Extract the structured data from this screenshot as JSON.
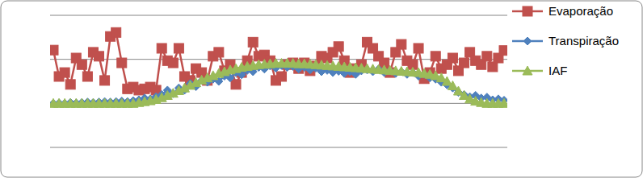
{
  "chart_data": {
    "type": "line",
    "x": [
      1,
      2,
      3,
      4,
      5,
      6,
      7,
      8,
      9,
      10,
      11,
      12,
      13,
      14,
      15,
      16,
      17,
      18,
      19,
      20,
      21,
      22,
      23,
      24,
      25,
      26,
      27,
      28,
      29,
      30,
      31,
      32,
      33,
      34,
      35,
      36,
      37,
      38,
      39,
      40,
      41,
      42,
      43,
      44,
      45,
      46,
      47,
      48,
      49,
      50,
      51,
      52,
      53,
      54,
      55,
      56,
      57,
      58,
      59,
      60,
      61,
      62,
      63,
      64,
      65,
      66,
      67,
      68,
      69,
      70,
      71,
      72,
      73,
      74,
      75,
      76,
      77,
      78,
      79,
      80
    ],
    "xlim": [
      1,
      80
    ],
    "ylim": [
      0,
      3
    ],
    "yticks": [
      0,
      1,
      2,
      3
    ],
    "grid": true,
    "tick_labels": false,
    "legend": "right",
    "series": [
      {
        "name": "Evaporação",
        "color": "#c0504d",
        "marker": "square",
        "values": [
          2.21,
          1.61,
          1.7,
          1.43,
          2.03,
          1.88,
          1.61,
          2.16,
          2.07,
          1.52,
          2.52,
          2.61,
          1.92,
          1.33,
          1.37,
          1.3,
          1.33,
          1.37,
          1.3,
          2.25,
          1.97,
          1.92,
          2.25,
          1.61,
          1.52,
          1.79,
          1.7,
          1.52,
          2.07,
          2.16,
          1.74,
          1.88,
          1.43,
          1.7,
          1.97,
          2.39,
          2.07,
          2.1,
          1.97,
          1.52,
          1.61,
          1.88,
          1.92,
          1.79,
          1.92,
          1.74,
          1.85,
          2.07,
          2.03,
          2.16,
          2.29,
          1.97,
          1.7,
          1.79,
          1.88,
          2.39,
          2.25,
          2.07,
          1.92,
          1.7,
          2.16,
          2.34,
          1.97,
          1.88,
          2.25,
          1.56,
          1.7,
          2.07,
          1.79,
          1.88,
          2.03,
          1.74,
          1.92,
          2.16,
          1.97,
          1.88,
          2.07,
          1.83,
          2.03,
          2.2
        ]
      },
      {
        "name": "Transpiração",
        "color": "#4f81bd",
        "marker": "diamond",
        "values": [
          1.0,
          1.01,
          1.0,
          1.02,
          1.01,
          1.02,
          1.03,
          1.02,
          1.03,
          1.04,
          1.03,
          1.04,
          1.05,
          1.04,
          1.06,
          1.08,
          1.12,
          1.1,
          1.15,
          1.2,
          1.3,
          1.22,
          1.35,
          1.3,
          1.45,
          1.38,
          1.52,
          1.48,
          1.55,
          1.5,
          1.62,
          1.58,
          1.7,
          1.65,
          1.75,
          1.72,
          1.82,
          1.78,
          1.85,
          1.8,
          1.86,
          1.82,
          1.84,
          1.78,
          1.82,
          1.76,
          1.8,
          1.72,
          1.75,
          1.7,
          1.73,
          1.68,
          1.72,
          1.66,
          1.74,
          1.76,
          1.72,
          1.78,
          1.7,
          1.74,
          1.68,
          1.72,
          1.66,
          1.7,
          1.62,
          1.66,
          1.58,
          1.55,
          1.48,
          1.42,
          1.35,
          1.25,
          1.2,
          1.15,
          1.18,
          1.12,
          1.14,
          1.08,
          1.1,
          1.07
        ]
      },
      {
        "name": "IAF",
        "color": "#9bbb59",
        "marker": "triangle",
        "values": [
          1.0,
          1.0,
          1.0,
          1.0,
          1.0,
          1.0,
          1.0,
          1.0,
          1.0,
          1.0,
          1.0,
          1.0,
          1.0,
          1.0,
          1.0,
          1.02,
          1.04,
          1.06,
          1.09,
          1.13,
          1.18,
          1.23,
          1.29,
          1.35,
          1.41,
          1.47,
          1.53,
          1.58,
          1.63,
          1.68,
          1.72,
          1.76,
          1.79,
          1.82,
          1.84,
          1.86,
          1.88,
          1.89,
          1.9,
          1.91,
          1.91,
          1.91,
          1.91,
          1.9,
          1.9,
          1.89,
          1.88,
          1.87,
          1.86,
          1.85,
          1.84,
          1.83,
          1.82,
          1.81,
          1.8,
          1.79,
          1.78,
          1.77,
          1.76,
          1.75,
          1.74,
          1.73,
          1.72,
          1.71,
          1.7,
          1.68,
          1.66,
          1.63,
          1.58,
          1.5,
          1.4,
          1.28,
          1.18,
          1.1,
          1.05,
          1.02,
          1.0,
          1.0,
          1.0,
          1.0
        ]
      }
    ]
  }
}
